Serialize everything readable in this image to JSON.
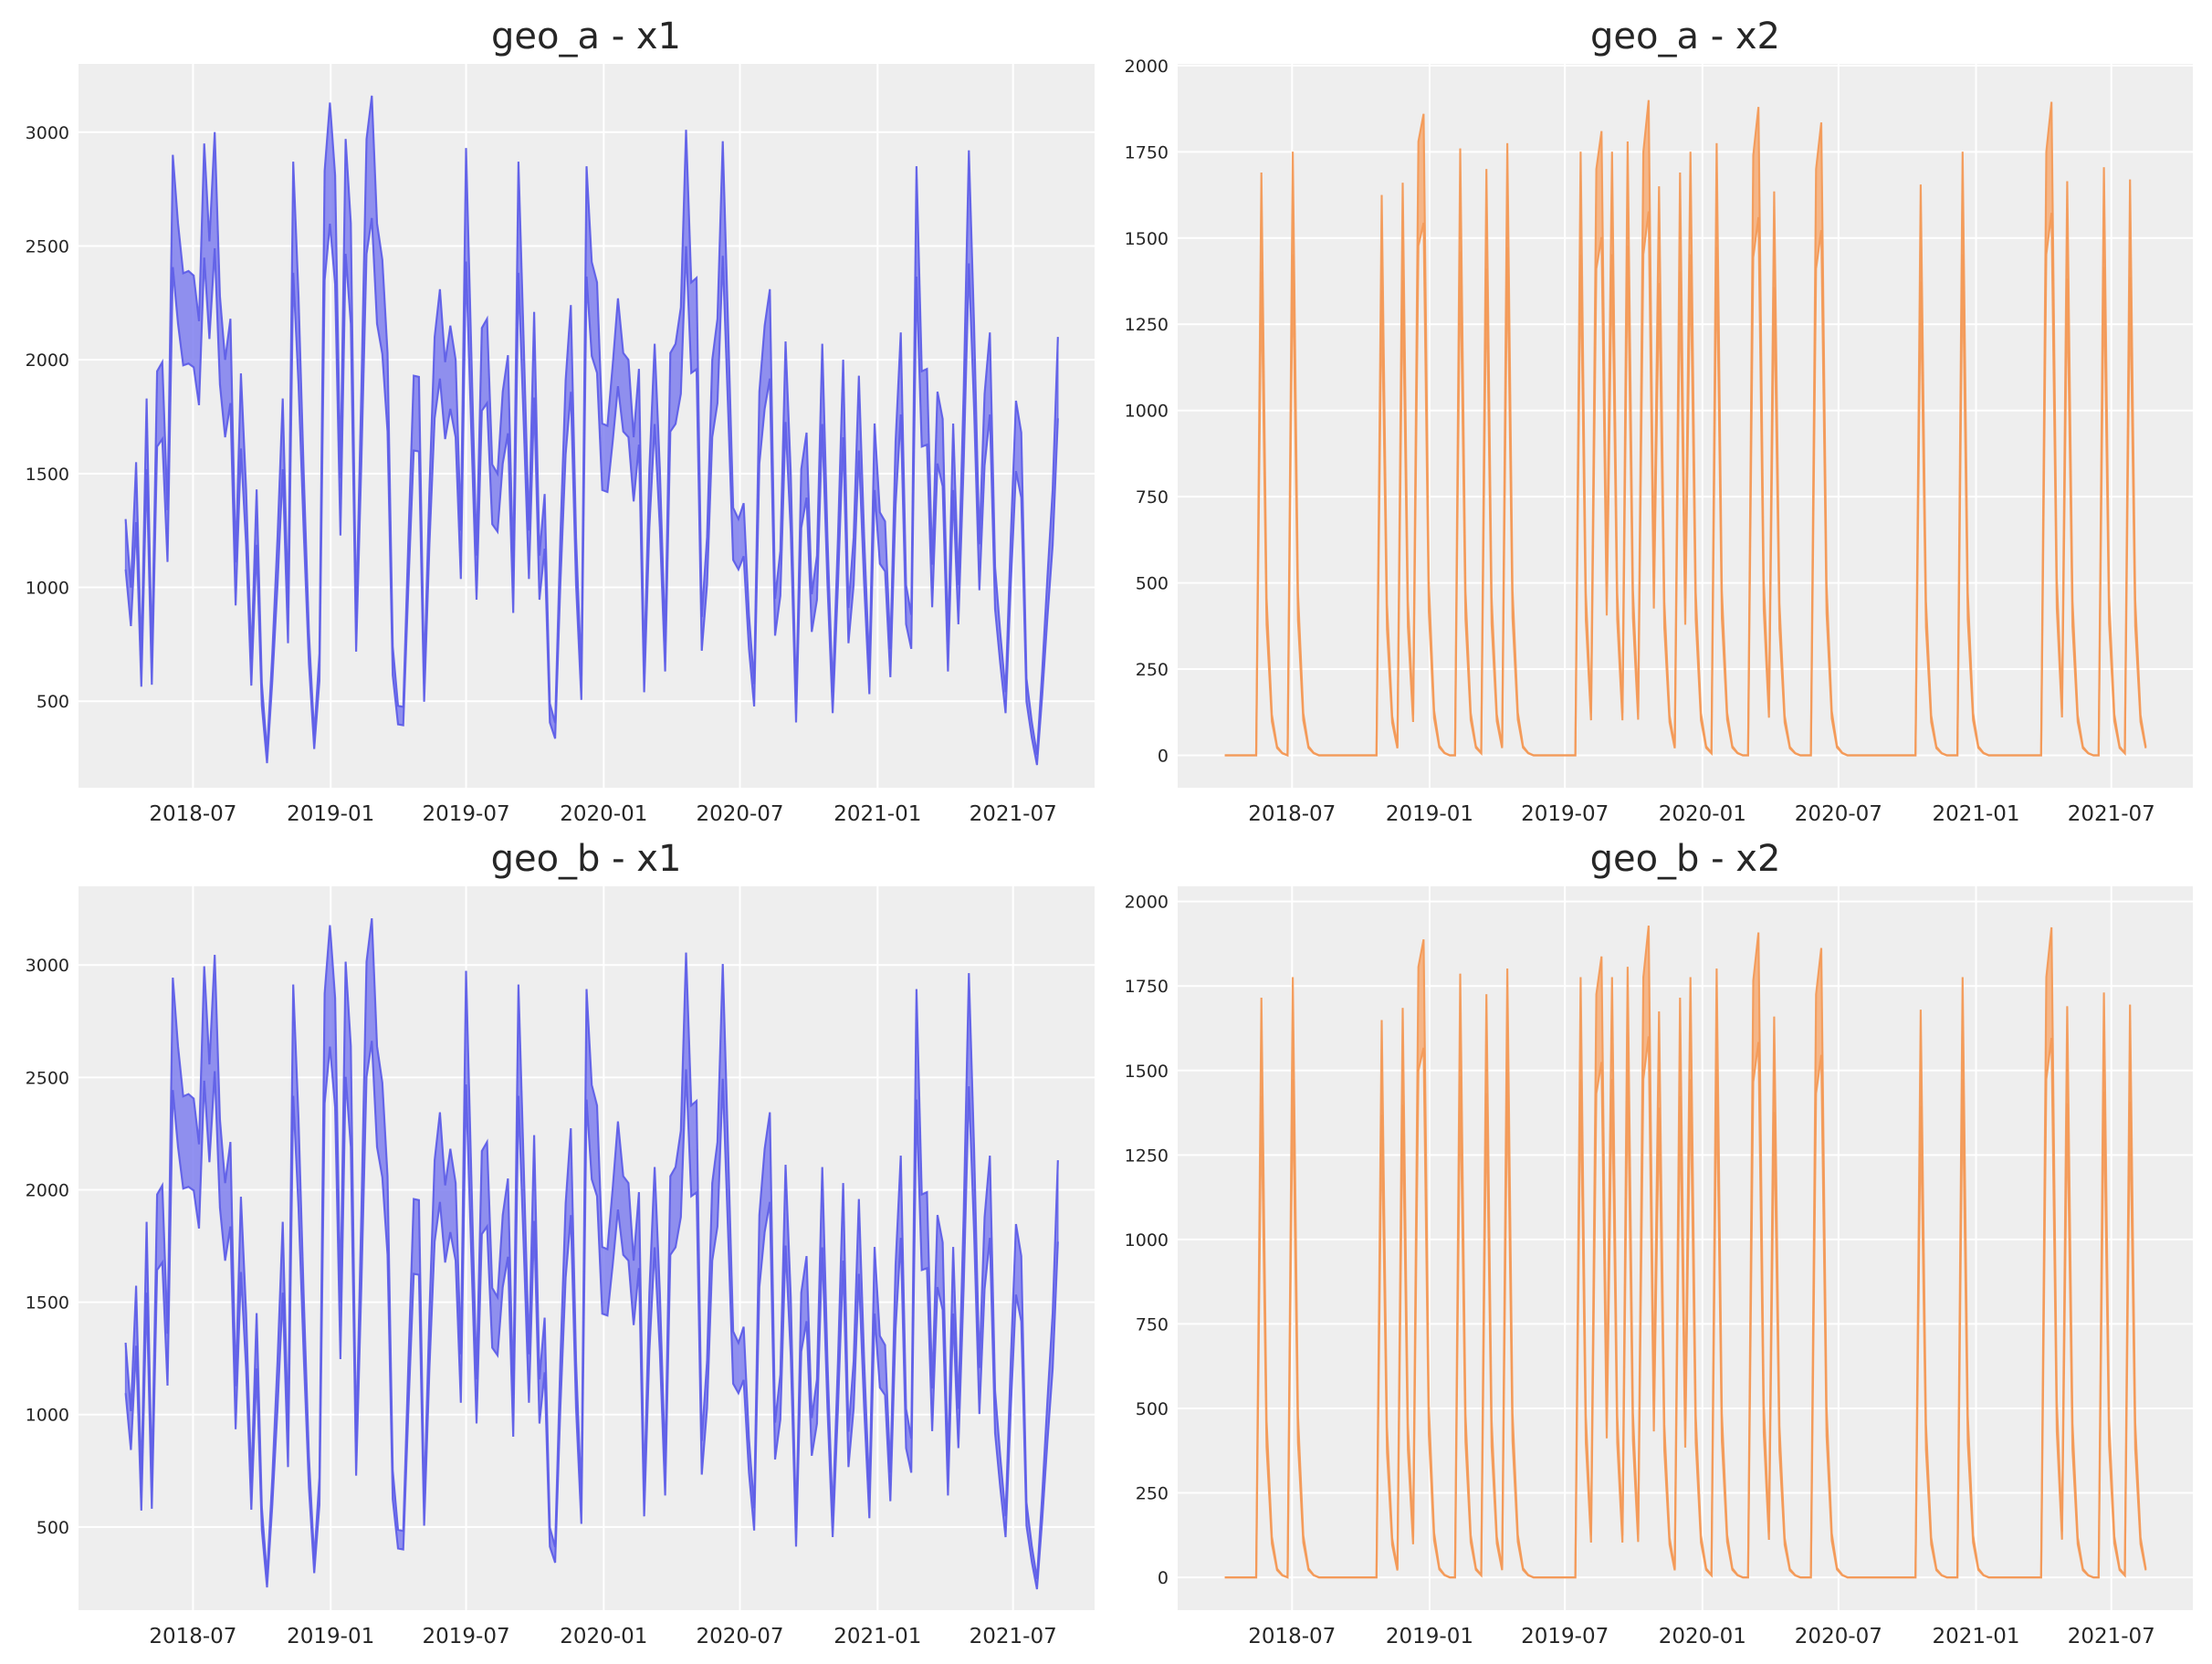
{
  "figure": {
    "panels": [
      "geo_a - x1",
      "geo_a - x2",
      "geo_b - x1",
      "geo_b - x2"
    ]
  },
  "chart_data": [
    {
      "id": "geo_a_x1",
      "type": "area",
      "title": "geo_a - x1",
      "x_start": "2018-04-02",
      "freq_days": 7,
      "xlim": [
        "2018-01-29",
        "2021-10-18"
      ],
      "x_ticks": [
        "2018-07",
        "2019-01",
        "2019-07",
        "2020-01",
        "2020-07",
        "2021-01",
        "2021-07"
      ],
      "ylim": [
        120,
        3300
      ],
      "y_ticks": [
        500,
        1000,
        1500,
        2000,
        2500,
        3000
      ],
      "grid": true,
      "fill_color": "#7777ee",
      "line_color": "#5f5fe8",
      "lower_ratio": 0.83,
      "upper": [
        1300,
        1000,
        1550,
        680,
        1830,
        690,
        1950,
        1990,
        1340,
        2900,
        2600,
        2380,
        2390,
        2370,
        2170,
        2950,
        2520,
        3000,
        2280,
        2000,
        2180,
        1110,
        1940,
        1430,
        685,
        1430,
        580,
        275,
        710,
        1220,
        1830,
        910,
        2870,
        2280,
        1500,
        800,
        350,
        710,
        2830,
        3130,
        2810,
        1480,
        2970,
        2600,
        865,
        1860,
        2970,
        3160,
        2600,
        2440,
        2030,
        740,
        480,
        475,
        1220,
        1930,
        1925,
        600,
        1430,
        2100,
        2310,
        1990,
        2150,
        2000,
        1250,
        2930,
        2030,
        1140,
        2140,
        2180,
        1540,
        1500,
        1860,
        2020,
        1070,
        2870,
        2070,
        1250,
        2210,
        1140,
        1410,
        490,
        405,
        1220,
        1910,
        2240,
        1220,
        610,
        2850,
        2430,
        2340,
        1720,
        1710,
        1980,
        2270,
        2030,
        2000,
        1660,
        1960,
        650,
        1520,
        2070,
        1520,
        760,
        2030,
        2070,
        2230,
        3010,
        2340,
        2360,
        870,
        1220,
        2000,
        2180,
        2960,
        2170,
        1350,
        1300,
        1370,
        880,
        575,
        1860,
        2150,
        2310,
        950,
        1160,
        2080,
        1500,
        490,
        1520,
        1680,
        970,
        1140,
        2070,
        1220,
        540,
        1220,
        2000,
        910,
        1220,
        1930,
        1220,
        640,
        1720,
        1330,
        1290,
        730,
        1640,
        2120,
        1010,
        880,
        2850,
        1950,
        1960,
        1100,
        1860,
        1740,
        760,
        1720,
        1010,
        1860,
        2920,
        2150,
        1190,
        1850,
        2120,
        1090,
        800,
        540,
        1220,
        1820,
        1680,
        600,
        410,
        265,
        630,
        1050,
        1430,
        2100
      ]
    },
    {
      "id": "geo_a_x2",
      "type": "area",
      "title": "geo_a - x2",
      "x_start": "2018-04-02",
      "freq_days": 7,
      "n_points": 177,
      "xlim": [
        "2018-01-29",
        "2021-10-18"
      ],
      "x_ticks": [
        "2018-07",
        "2019-01",
        "2019-07",
        "2020-01",
        "2020-07",
        "2021-01",
        "2021-07"
      ],
      "ylim": [
        -94,
        2005
      ],
      "y_ticks": [
        0,
        250,
        500,
        750,
        1000,
        1250,
        1500,
        1750,
        2000
      ],
      "grid": true,
      "fill_color": "#f6a86e",
      "line_color": "#f39a58",
      "lower_ratio": 0.83,
      "decay": [
        1,
        0.27,
        0.07,
        0.015,
        0.004
      ],
      "spikes": [
        [
          7,
          1690
        ],
        [
          13,
          1750
        ],
        [
          30,
          1625
        ],
        [
          34,
          1660
        ],
        [
          37,
          1780
        ],
        [
          38,
          1860
        ],
        [
          45,
          1760
        ],
        [
          50,
          1700
        ],
        [
          54,
          1775
        ],
        [
          68,
          1750
        ],
        [
          71,
          1700
        ],
        [
          72,
          1810
        ],
        [
          74,
          1750
        ],
        [
          77,
          1780
        ],
        [
          80,
          1750
        ],
        [
          81,
          1900
        ],
        [
          83,
          1650
        ],
        [
          87,
          1690
        ],
        [
          89,
          1750
        ],
        [
          94,
          1775
        ],
        [
          101,
          1740
        ],
        [
          102,
          1880
        ],
        [
          105,
          1635
        ],
        [
          113,
          1700
        ],
        [
          114,
          1835
        ],
        [
          133,
          1655
        ],
        [
          141,
          1750
        ],
        [
          157,
          1750
        ],
        [
          158,
          1895
        ],
        [
          161,
          1665
        ],
        [
          168,
          1705
        ],
        [
          173,
          1670
        ]
      ]
    },
    {
      "id": "geo_b_x1",
      "type": "area",
      "title": "geo_b - x1",
      "x_ticks": [
        "2018-07",
        "2019-01",
        "2019-07",
        "2020-01",
        "2020-07",
        "2021-01",
        "2021-07"
      ],
      "ylim": [
        130,
        3350
      ],
      "y_ticks": [
        500,
        1000,
        1500,
        2000,
        2500,
        3000
      ],
      "grid": true,
      "fill_color": "#7777ee",
      "line_color": "#5f5fe8",
      "same_shape_as": "geo_a_x1",
      "scale_vs_geo_a": 1.015
    },
    {
      "id": "geo_b_x2",
      "type": "area",
      "title": "geo_b - x2",
      "x_ticks": [
        "2018-07",
        "2019-01",
        "2019-07",
        "2020-01",
        "2020-07",
        "2021-01",
        "2021-07"
      ],
      "ylim": [
        -97,
        2045
      ],
      "y_ticks": [
        0,
        250,
        500,
        750,
        1000,
        1250,
        1500,
        1750,
        2000
      ],
      "grid": true,
      "fill_color": "#f6a86e",
      "line_color": "#f39a58",
      "same_shape_as": "geo_a_x2",
      "scale_vs_geo_a": 1.015
    }
  ]
}
